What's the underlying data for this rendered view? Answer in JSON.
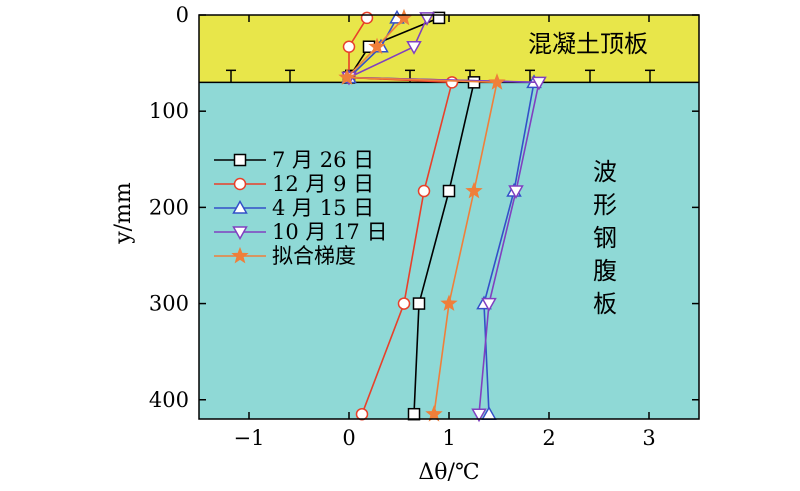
{
  "chart_data": {
    "type": "line",
    "xlabel": "Δθ/℃",
    "ylabel": "y/mm",
    "xlim": [
      -1.5,
      3.5
    ],
    "ylim": [
      420,
      0
    ],
    "y_inverted": true,
    "x_ticks": [
      -1,
      0,
      1,
      2,
      3
    ],
    "x_tick_labels": [
      "−1",
      "0",
      "1",
      "2",
      "3"
    ],
    "y_ticks": [
      0,
      100,
      200,
      300,
      400
    ],
    "y_tick_labels": [
      "0",
      "100",
      "200",
      "300",
      "400"
    ],
    "grid": false,
    "legend_position": "left",
    "regions": [
      {
        "label": "混凝土顶板",
        "y_from": 0,
        "y_to": 70,
        "color": "#e8e64a"
      },
      {
        "label": "波形钢腹板",
        "y_from": 70,
        "y_to": 420,
        "color": "#8fd9d6"
      }
    ],
    "series": [
      {
        "name": "7 月 26 日",
        "color": "#000000",
        "marker": "square",
        "x": [
          0.9,
          0.2,
          0.0,
          1.25,
          1.0,
          0.7,
          0.65
        ],
        "y": [
          3,
          33,
          65,
          70,
          183,
          300,
          415
        ]
      },
      {
        "name": "12 月 9 日",
        "color": "#e8402a",
        "marker": "circle",
        "x": [
          0.18,
          0.0,
          0.0,
          1.03,
          0.75,
          0.55,
          0.13
        ],
        "y": [
          3,
          33,
          65,
          70,
          183,
          300,
          415
        ]
      },
      {
        "name": "4 月 15 日",
        "color": "#3350c8",
        "marker": "triangle-up",
        "x": [
          0.48,
          0.32,
          0.0,
          1.85,
          1.65,
          1.35,
          1.4
        ],
        "y": [
          3,
          33,
          65,
          70,
          183,
          300,
          415
        ]
      },
      {
        "name": "10 月 17 日",
        "color": "#8040c0",
        "marker": "triangle-down",
        "x": [
          0.78,
          0.65,
          0.0,
          1.9,
          1.67,
          1.4,
          1.3
        ],
        "y": [
          3,
          33,
          65,
          70,
          183,
          300,
          415
        ]
      },
      {
        "name": "拟合梯度",
        "color": "#ef7f3a",
        "marker": "star",
        "x": [
          0.55,
          0.28,
          -0.02,
          1.48,
          1.25,
          1.0,
          0.85
        ],
        "y": [
          3,
          33,
          65,
          70,
          183,
          300,
          415
        ]
      }
    ]
  }
}
